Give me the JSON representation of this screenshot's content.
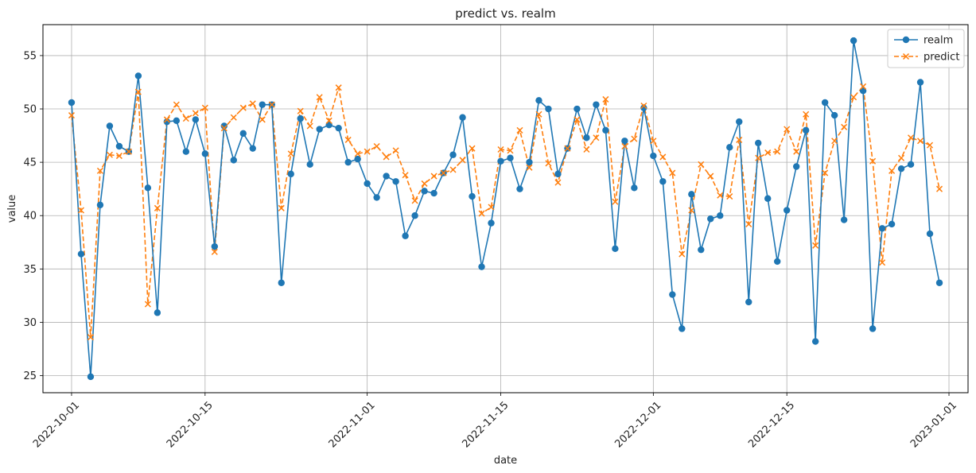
{
  "chart_data": {
    "type": "line",
    "title": "predict vs. realm",
    "xlabel": "date",
    "ylabel": "value",
    "x_start": "2022-10-01",
    "xlim": [
      "2022-09-28",
      "2023-01-03"
    ],
    "ylim": [
      23.4,
      57.9
    ],
    "x_ticks": [
      "2022-10-01",
      "2022-10-15",
      "2022-11-01",
      "2022-11-15",
      "2022-12-01",
      "2022-12-15",
      "2023-01-01"
    ],
    "y_ticks": [
      25,
      30,
      35,
      40,
      45,
      50,
      55
    ],
    "grid": true,
    "legend_position": "top-right",
    "colors": {
      "realm": "#1f77b4",
      "predict": "#ff7f0e"
    },
    "series": [
      {
        "name": "realm",
        "style": "solid line with circle markers",
        "values": [
          50.6,
          36.4,
          24.9,
          41.0,
          48.4,
          46.5,
          46.0,
          53.1,
          42.6,
          30.9,
          48.8,
          48.9,
          46.0,
          49.0,
          45.8,
          37.1,
          48.4,
          45.2,
          47.7,
          46.3,
          50.4,
          50.4,
          33.7,
          43.9,
          49.1,
          44.8,
          48.1,
          48.5,
          48.2,
          45.0,
          45.3,
          43.0,
          41.7,
          43.7,
          43.2,
          38.1,
          40.0,
          42.3,
          42.1,
          44.0,
          45.7,
          49.2,
          41.8,
          35.2,
          39.3,
          45.1,
          45.4,
          42.5,
          45.0,
          50.8,
          50.0,
          43.9,
          46.3,
          50.0,
          47.3,
          50.4,
          48.0,
          36.9,
          47.0,
          42.6,
          50.1,
          45.6,
          43.2,
          32.6,
          29.4,
          42.0,
          36.8,
          39.7,
          40.0,
          46.4,
          48.8,
          31.9,
          46.8,
          41.6,
          35.7,
          40.5,
          44.6,
          48.0,
          28.2,
          50.6,
          49.4,
          39.6,
          56.4,
          51.7,
          29.4,
          38.8,
          39.2,
          44.4,
          44.8,
          52.5,
          38.3,
          33.7
        ]
      },
      {
        "name": "predict",
        "style": "dashed line with x markers",
        "values": [
          49.4,
          40.5,
          28.6,
          44.2,
          45.7,
          45.6,
          46.0,
          51.6,
          31.7,
          40.7,
          49.0,
          50.4,
          49.1,
          49.6,
          50.1,
          36.6,
          48.2,
          49.2,
          50.1,
          50.5,
          49.0,
          50.4,
          40.7,
          45.8,
          49.8,
          48.4,
          51.1,
          48.9,
          52.0,
          47.1,
          45.8,
          46.0,
          46.5,
          45.5,
          46.1,
          43.8,
          41.4,
          43.0,
          43.7,
          44.0,
          44.3,
          45.2,
          46.3,
          40.2,
          40.8,
          46.2,
          46.1,
          48.0,
          44.5,
          49.5,
          44.9,
          43.1,
          46.3,
          49.0,
          46.2,
          47.3,
          50.9,
          41.3,
          46.5,
          47.2,
          50.3,
          47.0,
          45.5,
          44.0,
          36.4,
          40.5,
          44.8,
          43.7,
          41.9,
          41.8,
          47.1,
          39.2,
          45.4,
          45.9,
          46.0,
          48.1,
          46.0,
          49.5,
          37.2,
          44.0,
          47.0,
          48.3,
          51.1,
          52.1,
          45.1,
          35.6,
          44.2,
          45.4,
          47.3,
          47.0,
          46.6,
          42.5
        ]
      }
    ]
  }
}
